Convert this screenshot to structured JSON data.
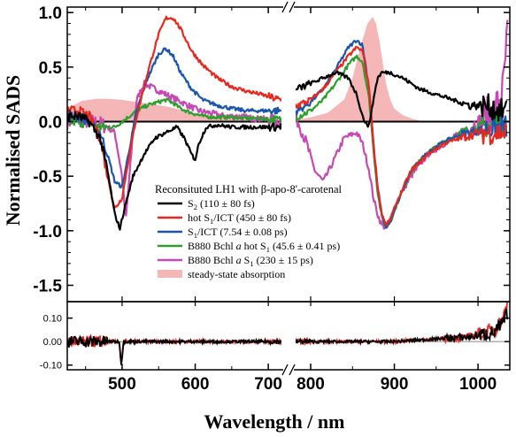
{
  "chart_data": {
    "type": "line",
    "xlabel": "Wavelength / nm",
    "ylabel": "Normalised SADS",
    "x_ticks": [
      500,
      600,
      700,
      800,
      900,
      1000
    ],
    "x_segments": [
      [
        425,
        718
      ],
      [
        782,
        1038
      ]
    ],
    "main_panel": {
      "ylim": [
        -1.65,
        1.05
      ],
      "y_ticks": [
        "1.0",
        "0.5",
        "0.0",
        "-0.5",
        "-1.0",
        "-1.5"
      ],
      "y_tick_values": [
        1.0,
        0.5,
        0.0,
        -0.5,
        -1.0,
        -1.5
      ],
      "legend_title": "Reconsituted LH1 with β-apo-8'-carotenal",
      "series": [
        {
          "label": "S",
          "sub": "2",
          "rest": " (110 ± 80 fs)",
          "color": "#000000",
          "x": [
            425,
            440,
            455,
            470,
            480,
            490,
            497,
            505,
            515,
            530,
            545,
            560,
            575,
            585,
            595,
            600,
            605,
            615,
            630,
            650,
            670,
            690,
            705,
            715,
            785,
            800,
            815,
            830,
            845,
            855,
            862,
            868,
            872,
            876,
            880,
            885,
            895,
            910,
            930,
            950,
            970,
            990,
            1010,
            1025,
            1035
          ],
          "y": [
            0.05,
            0.05,
            0.0,
            -0.15,
            -0.45,
            -0.85,
            -0.98,
            -0.75,
            -0.5,
            -0.3,
            -0.15,
            -0.1,
            -0.05,
            -0.15,
            -0.3,
            -0.35,
            -0.2,
            -0.05,
            -0.03,
            -0.05,
            -0.05,
            -0.05,
            -0.05,
            -0.05,
            0.3,
            0.35,
            0.4,
            0.45,
            0.4,
            0.25,
            0.05,
            -0.05,
            0.05,
            0.25,
            0.4,
            0.45,
            0.45,
            0.4,
            0.3,
            0.25,
            0.2,
            0.15,
            0.15,
            0.1,
            0.1
          ]
        },
        {
          "label": "hot S",
          "sub": "1",
          "rest": "/ICT (450 ± 80 fs)",
          "color": "#e8281e",
          "x": [
            425,
            440,
            455,
            470,
            480,
            490,
            500,
            510,
            520,
            535,
            550,
            560,
            570,
            580,
            595,
            610,
            630,
            650,
            670,
            690,
            705,
            715,
            785,
            800,
            815,
            830,
            845,
            855,
            862,
            870,
            875,
            880,
            885,
            890,
            895,
            905,
            920,
            940,
            960,
            980,
            1000,
            1020,
            1035
          ],
          "y": [
            0.1,
            0.1,
            0.05,
            -0.15,
            -0.5,
            -0.8,
            -0.7,
            -0.3,
            0.05,
            0.45,
            0.8,
            0.95,
            0.95,
            0.85,
            0.65,
            0.52,
            0.4,
            0.32,
            0.28,
            0.25,
            0.22,
            0.2,
            0.15,
            0.2,
            0.3,
            0.45,
            0.6,
            0.68,
            0.65,
            0.3,
            -0.2,
            -0.6,
            -0.85,
            -0.95,
            -0.9,
            -0.7,
            -0.45,
            -0.3,
            -0.2,
            -0.15,
            -0.1,
            -0.1,
            -0.1
          ]
        },
        {
          "label": "S",
          "sub": "1",
          "rest": "/ICT (7.54 ± 0.08 ps)",
          "color": "#1a56b0",
          "x": [
            425,
            440,
            455,
            470,
            480,
            490,
            500,
            510,
            520,
            535,
            550,
            560,
            570,
            580,
            595,
            610,
            630,
            650,
            670,
            690,
            705,
            715,
            785,
            800,
            815,
            830,
            845,
            855,
            862,
            870,
            875,
            880,
            885,
            890,
            895,
            905,
            920,
            940,
            960,
            980,
            1000,
            1020,
            1035
          ],
          "y": [
            0.05,
            0.05,
            0.0,
            -0.1,
            -0.3,
            -0.55,
            -0.6,
            -0.25,
            0.1,
            0.4,
            0.62,
            0.67,
            0.6,
            0.45,
            0.3,
            0.2,
            0.15,
            0.12,
            0.1,
            0.1,
            0.1,
            0.1,
            0.1,
            0.18,
            0.3,
            0.48,
            0.68,
            0.75,
            0.7,
            0.3,
            -0.2,
            -0.6,
            -0.85,
            -0.97,
            -0.92,
            -0.72,
            -0.45,
            -0.28,
            -0.18,
            -0.12,
            -0.08,
            -0.05,
            -0.05
          ]
        },
        {
          "label": "B880 Bchl ",
          "italic": "a",
          "label2": " hot S",
          "sub": "1",
          "rest": " (45.6 ± 0.41 ps)",
          "color": "#2ca02c",
          "x": [
            425,
            440,
            455,
            470,
            480,
            490,
            500,
            510,
            520,
            535,
            550,
            560,
            570,
            580,
            595,
            610,
            630,
            650,
            670,
            690,
            705,
            715,
            785,
            800,
            815,
            830,
            845,
            855,
            862,
            870,
            875,
            880,
            885,
            890,
            895,
            905,
            920,
            940,
            960,
            980,
            1000,
            1020,
            1035
          ],
          "y": [
            0.0,
            0.0,
            -0.02,
            -0.05,
            -0.05,
            -0.05,
            0.0,
            0.05,
            0.1,
            0.15,
            0.18,
            0.2,
            0.17,
            0.12,
            0.08,
            0.05,
            0.04,
            0.04,
            0.03,
            0.03,
            0.02,
            0.02,
            0.05,
            0.1,
            0.2,
            0.35,
            0.52,
            0.6,
            0.55,
            0.2,
            -0.25,
            -0.65,
            -0.88,
            -0.97,
            -0.92,
            -0.72,
            -0.45,
            -0.28,
            -0.18,
            -0.1,
            -0.05,
            -0.03,
            -0.02
          ]
        },
        {
          "label": "B880 Bchl ",
          "italic": "a",
          "label2": " S",
          "sub": "1",
          "rest": " (230 ± 15 ps)",
          "color": "#c848b4",
          "x": [
            425,
            440,
            455,
            470,
            480,
            490,
            500,
            505,
            510,
            515,
            520,
            530,
            545,
            560,
            575,
            590,
            605,
            620,
            640,
            660,
            680,
            700,
            715,
            785,
            795,
            805,
            815,
            825,
            840,
            855,
            862,
            870,
            875,
            880,
            885,
            890,
            895,
            905,
            920,
            940,
            960,
            980,
            1000,
            1020,
            1030,
            1036
          ],
          "y": [
            0.0,
            0.02,
            0.0,
            -0.02,
            -0.05,
            -0.1,
            -0.5,
            -0.9,
            -0.5,
            -0.1,
            0.2,
            0.35,
            0.3,
            0.25,
            0.2,
            0.15,
            0.1,
            0.08,
            0.05,
            0.05,
            0.03,
            0.02,
            0.0,
            0.0,
            -0.2,
            -0.45,
            -0.55,
            -0.4,
            -0.15,
            -0.1,
            -0.2,
            -0.45,
            -0.7,
            -0.85,
            -0.95,
            -0.97,
            -0.9,
            -0.7,
            -0.5,
            -0.3,
            -0.2,
            -0.1,
            0.0,
            0.1,
            0.3,
            0.9
          ]
        }
      ],
      "fill": {
        "label": "steady-state absorption",
        "color": "#f4b6b6",
        "x": [
          425,
          445,
          465,
          480,
          500,
          520,
          540,
          560,
          580,
          600,
          620,
          640,
          660,
          680,
          700,
          715,
          785,
          800,
          820,
          840,
          850,
          860,
          868,
          874,
          878,
          882,
          886,
          890,
          895,
          900,
          910,
          920,
          935
        ],
        "y": [
          0.12,
          0.19,
          0.21,
          0.21,
          0.2,
          0.18,
          0.16,
          0.14,
          0.11,
          0.08,
          0.06,
          0.04,
          0.03,
          0.02,
          0.015,
          0.01,
          0.02,
          0.04,
          0.08,
          0.2,
          0.4,
          0.7,
          0.9,
          0.96,
          0.9,
          0.75,
          0.55,
          0.35,
          0.2,
          0.12,
          0.06,
          0.03,
          0.0
        ]
      }
    },
    "residual_panel": {
      "ylim": [
        -0.12,
        0.17
      ],
      "y_ticks": [
        "0.10",
        "0.00",
        "-0.10"
      ],
      "y_tick_values": [
        0.1,
        0.0,
        -0.1
      ],
      "series": [
        {
          "color": "#e8281e",
          "x": [
            425,
            460,
            496,
            499,
            502,
            530,
            700,
            715,
            785,
            900,
            990,
            1020,
            1030,
            1035
          ],
          "y": [
            0.0,
            0.0,
            0.0,
            -0.09,
            0.0,
            0.0,
            0.0,
            0.0,
            0.0,
            0.0,
            0.02,
            0.05,
            0.1,
            0.16
          ]
        },
        {
          "color": "#000000",
          "x": [
            425,
            460,
            496,
            499,
            502,
            530,
            700,
            715,
            785,
            900,
            990,
            1020,
            1030,
            1035
          ],
          "y": [
            0.0,
            0.0,
            0.0,
            -0.1,
            0.0,
            0.0,
            0.0,
            0.0,
            0.0,
            0.0,
            0.02,
            0.04,
            0.08,
            0.12
          ]
        }
      ]
    }
  }
}
